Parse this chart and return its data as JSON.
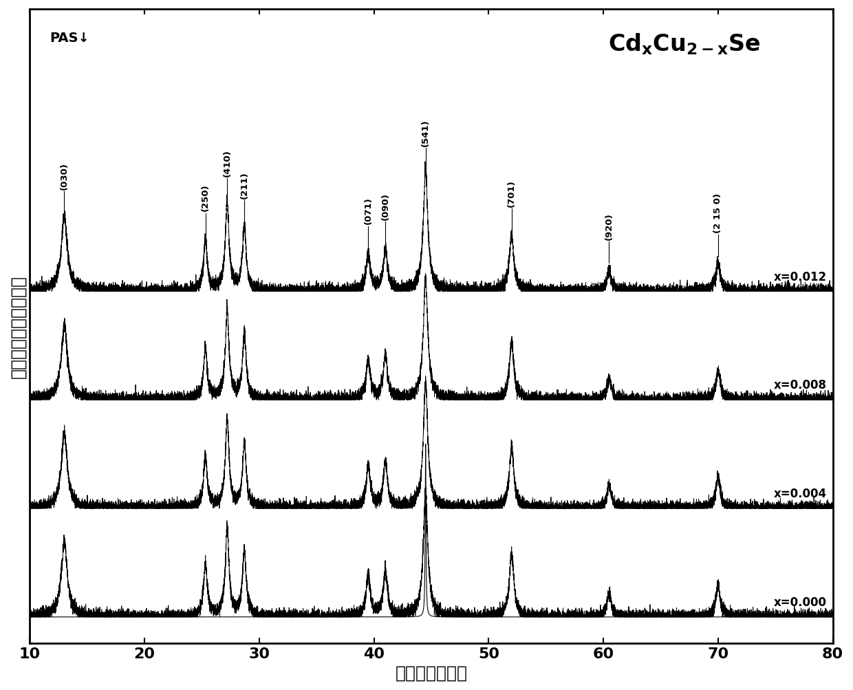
{
  "xlim": [
    10,
    80
  ],
  "xlabel": "衍射角度（度）",
  "ylabel": "衍射强度（任意单位）",
  "corner_label": "PAS↓",
  "sample_labels": [
    "x=0.012",
    "x=0.008",
    "x=0.004",
    "x=0.000"
  ],
  "offsets": [
    1.5,
    1.0,
    0.5,
    0.0
  ],
  "peak_positions": [
    13.0,
    25.3,
    27.2,
    28.7,
    39.5,
    41.0,
    44.5,
    52.0,
    60.5,
    70.0
  ],
  "hkl_labels": [
    "(030)",
    "(250)",
    "(410)",
    "(211)",
    "(071)",
    "(090)",
    "(541)",
    "(701)",
    "(920)",
    "(2 15 0)"
  ],
  "line_color": "#000000",
  "background_color": "#ffffff",
  "tick_fontsize": 16,
  "label_fontsize": 18,
  "noise_amplitude": 0.015,
  "peak_widths": [
    0.3,
    0.18,
    0.18,
    0.18,
    0.2,
    0.2,
    0.22,
    0.22,
    0.22,
    0.22
  ],
  "peak_heights_base": [
    0.32,
    0.22,
    0.38,
    0.28,
    0.16,
    0.18,
    0.55,
    0.26,
    0.1,
    0.13
  ]
}
